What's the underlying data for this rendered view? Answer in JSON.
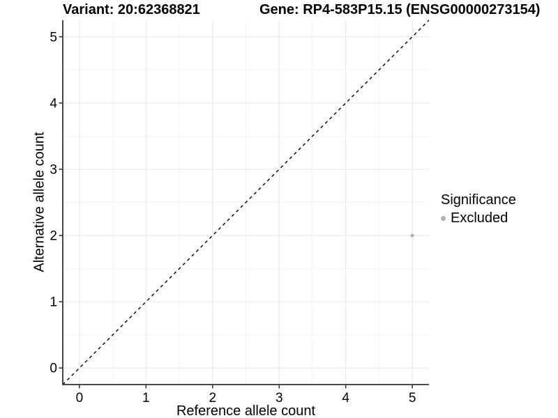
{
  "chart_data": {
    "type": "scatter",
    "title_left": "Variant: 20:62368821",
    "title_right": "Gene: RP4-583P15.15 (ENSG00000273154)",
    "xlabel": "Reference allele count",
    "ylabel": "Alternative allele count",
    "xlim": [
      -0.25,
      5.25
    ],
    "ylim": [
      -0.25,
      5.25
    ],
    "xticks": [
      0,
      1,
      2,
      3,
      4,
      5
    ],
    "yticks": [
      0,
      1,
      2,
      3,
      4,
      5
    ],
    "minor_grid_step": 0.5,
    "grid": true,
    "reference_line": {
      "kind": "identity",
      "linestyle": "dashed",
      "color": "#000000"
    },
    "series": [
      {
        "name": "Excluded",
        "color": "#b1b1b1",
        "points": [
          {
            "x": 5,
            "y": 2
          }
        ]
      }
    ],
    "legend": {
      "position": "right",
      "title": "Significance",
      "items": [
        {
          "label": "Excluded",
          "color": "#b1b1b1"
        }
      ]
    },
    "colors": {
      "background": "#ffffff",
      "major_grid": "#e7e7e7",
      "minor_grid": "#f2f2f2",
      "axis_line": "#333333",
      "text": "#000000"
    }
  }
}
